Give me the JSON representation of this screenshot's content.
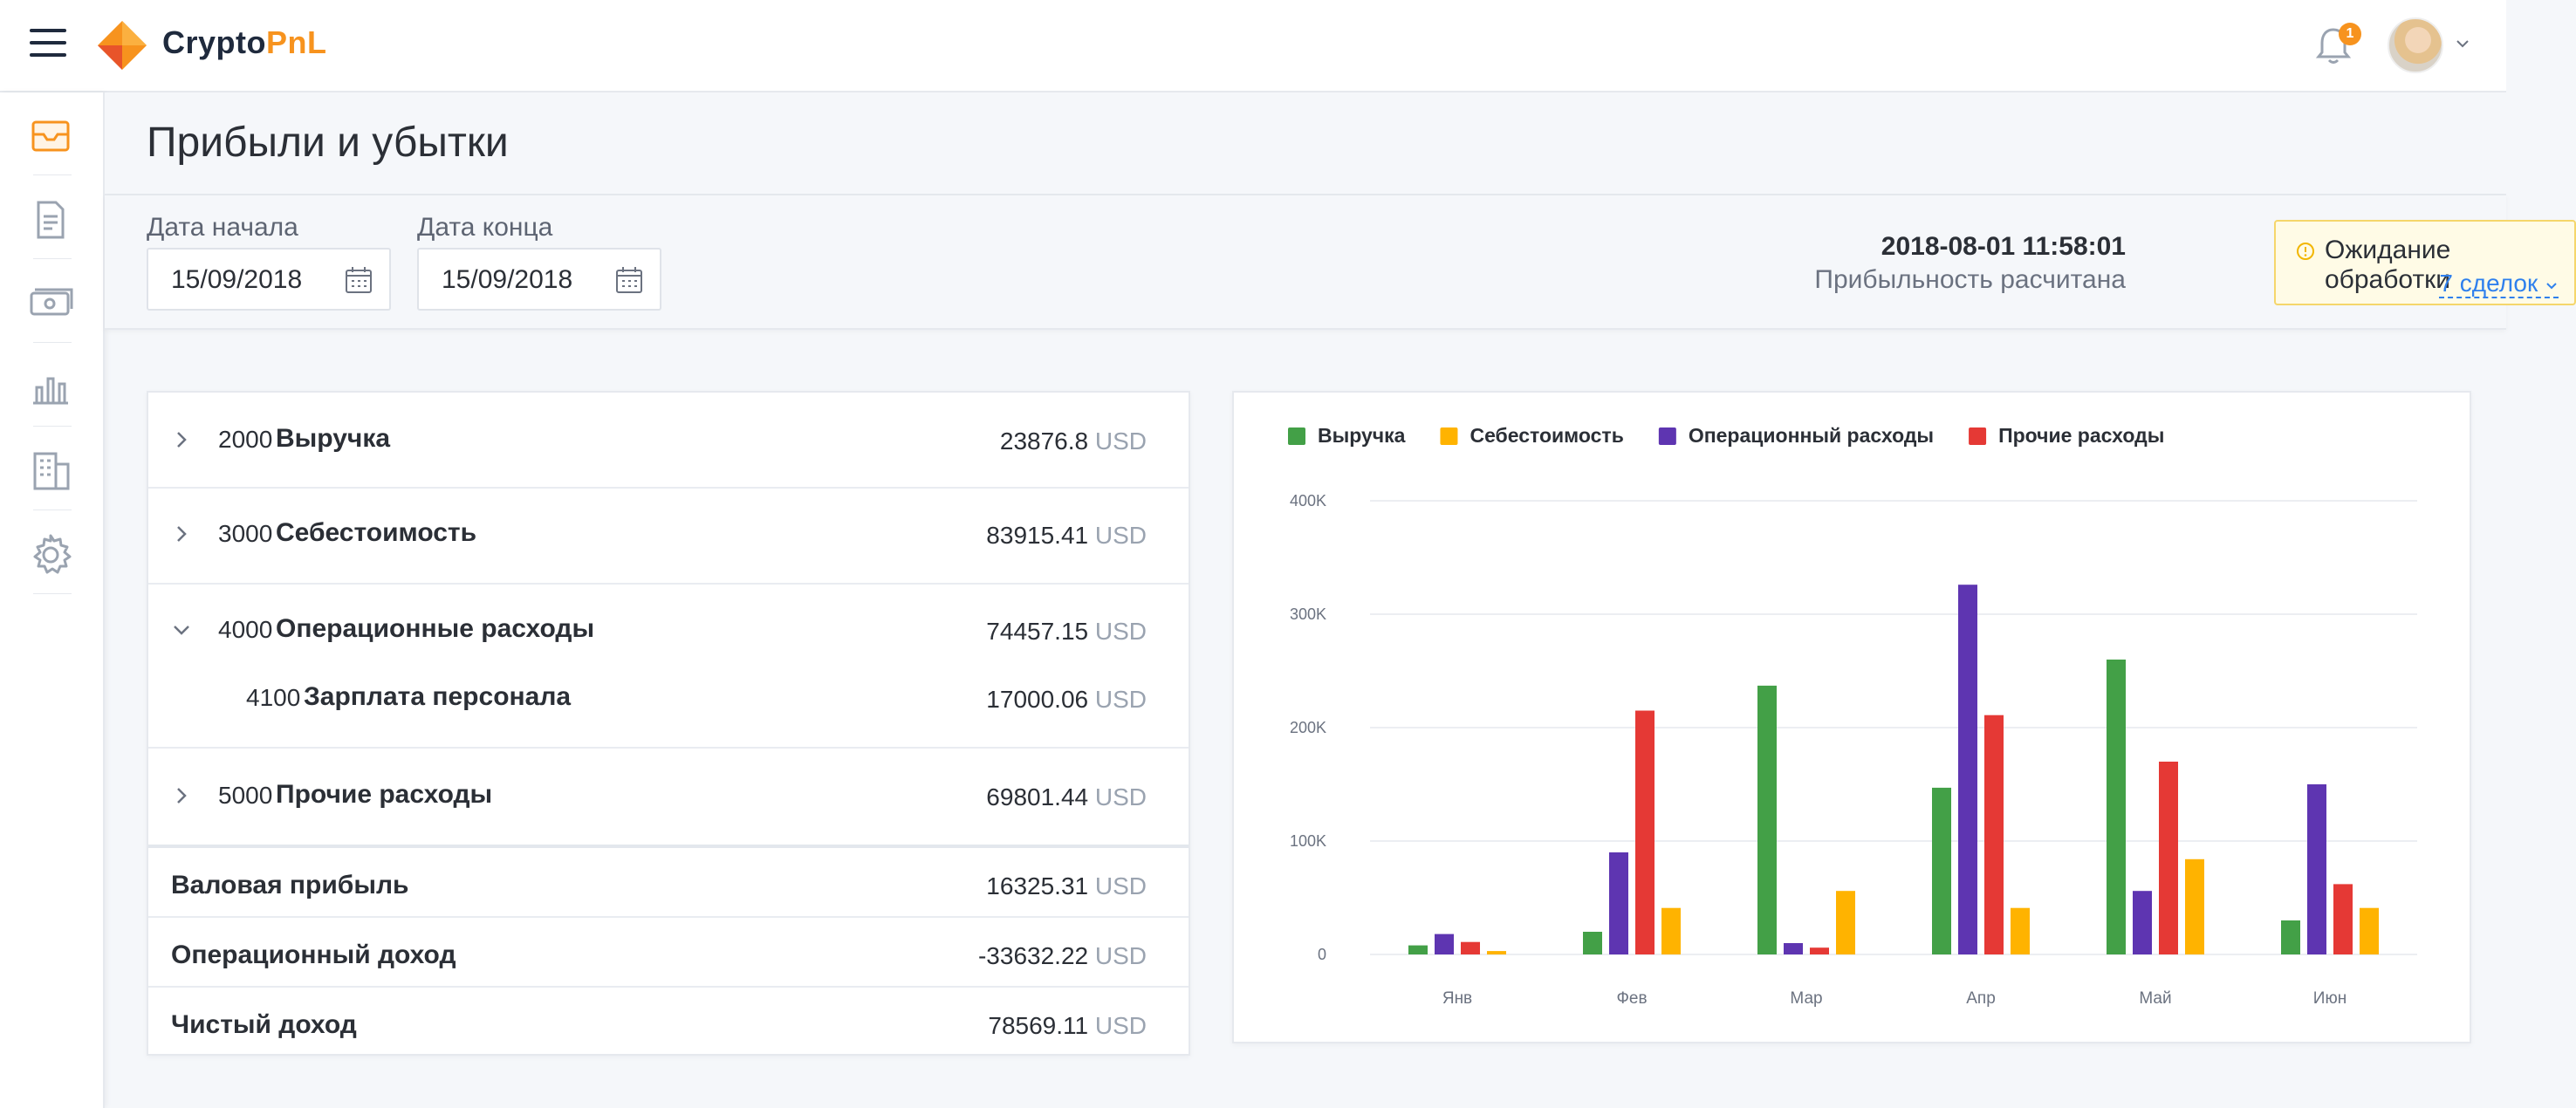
{
  "app": {
    "logo_text_a": "Crypto",
    "logo_text_b": "PnL",
    "notification_count": "1"
  },
  "page": {
    "title": "Прибыли и убытки"
  },
  "filters": {
    "start_label": "Дата начала",
    "start_value": "15/09/2018",
    "end_label": "Дата конца",
    "end_value": "15/09/2018",
    "timestamp": "2018-08-01 11:58:01",
    "status_text": "Прибыльность расчитана",
    "pending_title": "Ожидание обработки",
    "pending_link": "7 сделок"
  },
  "pl": {
    "currency": "USD",
    "rows": [
      {
        "code": "2000",
        "name": "Выручка",
        "amount": "23876.8"
      },
      {
        "code": "3000",
        "name": "Себестоимость",
        "amount": "83915.41"
      },
      {
        "code": "4000",
        "name": "Операционные расходы",
        "amount": "74457.15"
      },
      {
        "code": "4100",
        "name": "Зарплата персонала",
        "amount": "17000.06"
      },
      {
        "code": "5000",
        "name": "Прочие расходы",
        "amount": "69801.44"
      }
    ],
    "totals": [
      {
        "name": "Валовая прибыль",
        "amount": "16325.31"
      },
      {
        "name": "Операционный доход",
        "amount": "-33632.22"
      },
      {
        "name": "Чистый доход",
        "amount": "78569.11"
      }
    ]
  },
  "chart_data": {
    "type": "bar",
    "categories": [
      "Янв",
      "Фев",
      "Мар",
      "Апр",
      "Май",
      "Июн"
    ],
    "ylim": [
      0,
      400000
    ],
    "yticks": [
      0,
      100000,
      200000,
      300000,
      400000
    ],
    "ytick_labels": [
      "0",
      "100K",
      "200K",
      "300K",
      "400K"
    ],
    "legend_position": "top-left",
    "grid": true,
    "series": [
      {
        "name": "Выручка",
        "color": "#43a047",
        "values": [
          8000,
          20000,
          237000,
          147000,
          260000,
          30000
        ]
      },
      {
        "name": "Операционный расходы",
        "color": "#5e35b1",
        "values": [
          18000,
          90000,
          10000,
          326000,
          56000,
          150000
        ]
      },
      {
        "name": "Прочие расходы",
        "color": "#e53935",
        "values": [
          11000,
          215000,
          6000,
          211000,
          170000,
          62000
        ]
      },
      {
        "name": "Себестоимость",
        "color": "#ffb300",
        "values": [
          3000,
          41000,
          56000,
          41000,
          84000,
          41000
        ]
      }
    ],
    "legend_order": [
      0,
      3,
      1,
      2
    ]
  }
}
